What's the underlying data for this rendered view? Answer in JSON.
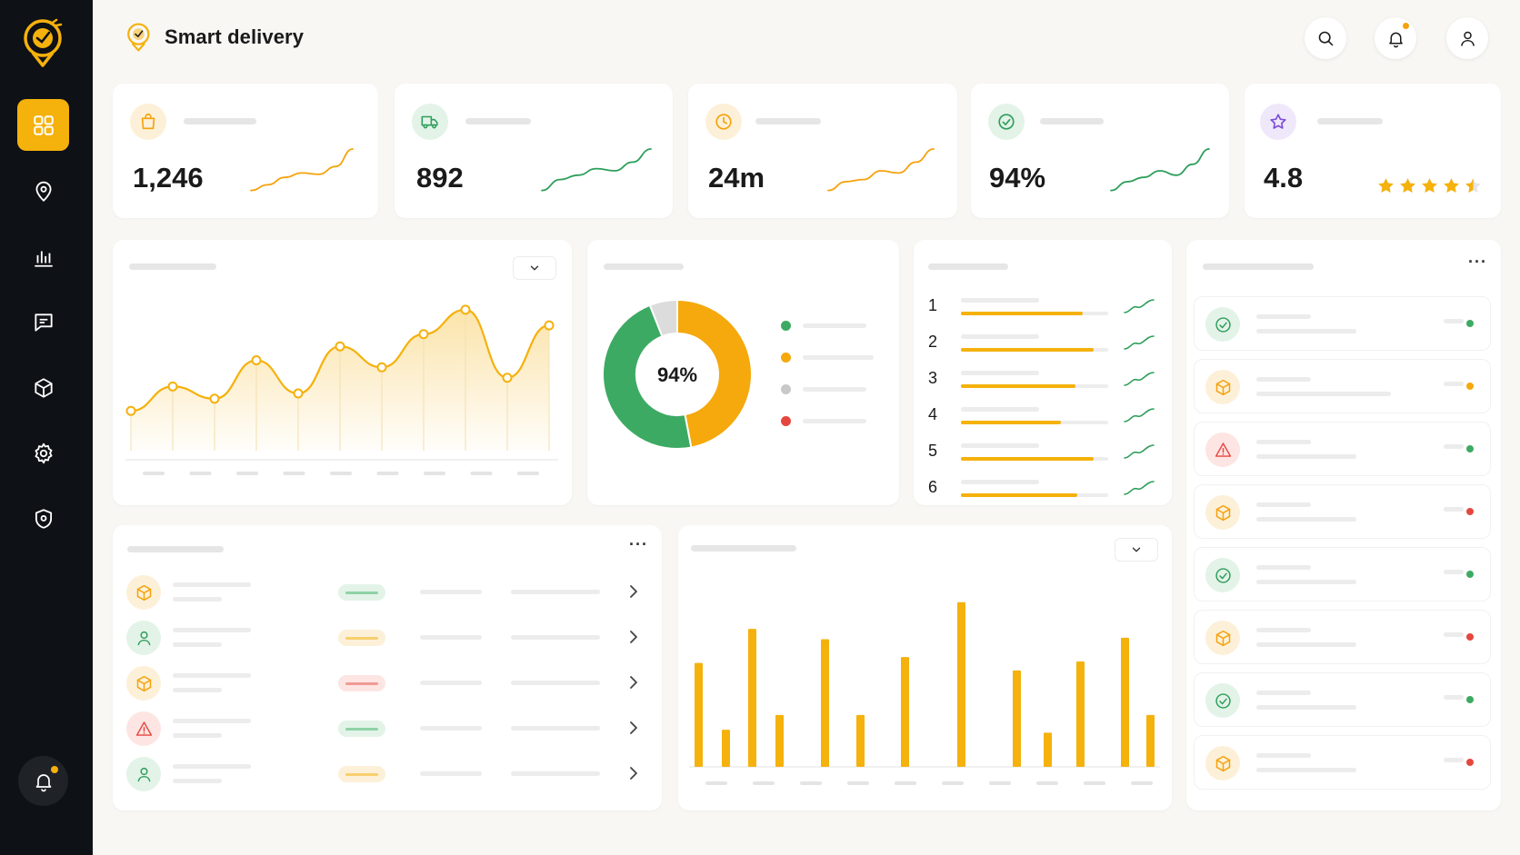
{
  "app": {
    "title": "Smart delivery"
  },
  "sidebar": {
    "items": [
      {
        "name": "dashboard",
        "icon": "grid-icon",
        "active": true
      },
      {
        "name": "locations",
        "icon": "location-pin-icon"
      },
      {
        "name": "analytics",
        "icon": "bar-chart-icon"
      },
      {
        "name": "messages",
        "icon": "chat-icon"
      },
      {
        "name": "packages",
        "icon": "package-icon"
      },
      {
        "name": "settings",
        "icon": "gear-icon"
      },
      {
        "name": "security",
        "icon": "shield-icon"
      }
    ],
    "notification_icon": "bell-icon"
  },
  "header": {
    "actions": [
      "search-icon",
      "bell-icon",
      "user-icon"
    ],
    "notification_dot": true
  },
  "stats": [
    {
      "icon": "shopping-bag-icon",
      "value": "1,246",
      "accent": "#f5a20c",
      "trend": [
        0.05,
        0.18,
        0.35,
        0.45,
        0.42,
        0.6,
        1.0
      ]
    },
    {
      "icon": "truck-icon",
      "value": "892",
      "accent": "#2e9e5b",
      "trend": [
        0.05,
        0.3,
        0.4,
        0.55,
        0.5,
        0.7,
        1.0
      ]
    },
    {
      "icon": "clock-icon",
      "value": "24m",
      "accent": "#f5a20c",
      "trend": [
        0.05,
        0.25,
        0.3,
        0.5,
        0.45,
        0.7,
        1.0
      ]
    },
    {
      "icon": "check-circle-icon",
      "value": "94%",
      "accent": "#2e9e5b",
      "trend": [
        0.05,
        0.25,
        0.35,
        0.5,
        0.4,
        0.65,
        1.0
      ]
    },
    {
      "icon": "star-icon",
      "value": "4.8",
      "accent": "#7c4fd8",
      "rating": 4.5
    }
  ],
  "chart_data": [
    {
      "type": "area",
      "x": [
        1,
        2,
        3,
        4,
        5,
        6,
        7,
        8,
        9,
        10,
        11
      ],
      "values": [
        28,
        42,
        35,
        57,
        38,
        65,
        53,
        72,
        86,
        47,
        77
      ],
      "ylim": [
        0,
        100
      ]
    },
    {
      "type": "pie",
      "center_label": "94%",
      "values": [
        47,
        47,
        6
      ],
      "colors": [
        "#f5a90c",
        "#3daa63",
        "#dcdcdc"
      ]
    },
    {
      "type": "bar",
      "values": [
        70,
        25,
        93,
        35,
        86,
        35,
        74,
        111,
        65,
        23,
        71,
        87,
        35
      ],
      "ylim": [
        0,
        120
      ]
    }
  ],
  "donut_legend": [
    {
      "color": "#3daa63"
    },
    {
      "color": "#f5a90c"
    },
    {
      "color": "#c8c8c8"
    },
    {
      "color": "#e5473f"
    }
  ],
  "ranking": [
    {
      "rank": "1",
      "progress": 0.83
    },
    {
      "rank": "2",
      "progress": 0.9
    },
    {
      "rank": "3",
      "progress": 0.78
    },
    {
      "rank": "4",
      "progress": 0.68
    },
    {
      "rank": "5",
      "progress": 0.9
    },
    {
      "rank": "6",
      "progress": 0.79
    }
  ],
  "orders": [
    {
      "icon": "package-icon",
      "status_color": "#3daa63"
    },
    {
      "icon": "user-icon",
      "status_color": "#f5b10c"
    },
    {
      "icon": "package-icon",
      "status_color": "#e5473f"
    },
    {
      "icon": "warning-icon",
      "status_color": "#3daa63"
    },
    {
      "icon": "user-icon",
      "status_color": "#f5b10c"
    }
  ],
  "activity": [
    {
      "icon": "check-circle-icon",
      "status_color": "#3daa63"
    },
    {
      "icon": "package-icon",
      "status_color": "#f5a90c"
    },
    {
      "icon": "warning-icon",
      "status_color": "#3daa63"
    },
    {
      "icon": "package-icon",
      "status_color": "#e5473f"
    },
    {
      "icon": "check-circle-icon",
      "status_color": "#3daa63"
    },
    {
      "icon": "package-icon",
      "status_color": "#e5473f"
    },
    {
      "icon": "check-circle-icon",
      "status_color": "#3daa63"
    },
    {
      "icon": "package-icon",
      "status_color": "#e5473f"
    }
  ]
}
